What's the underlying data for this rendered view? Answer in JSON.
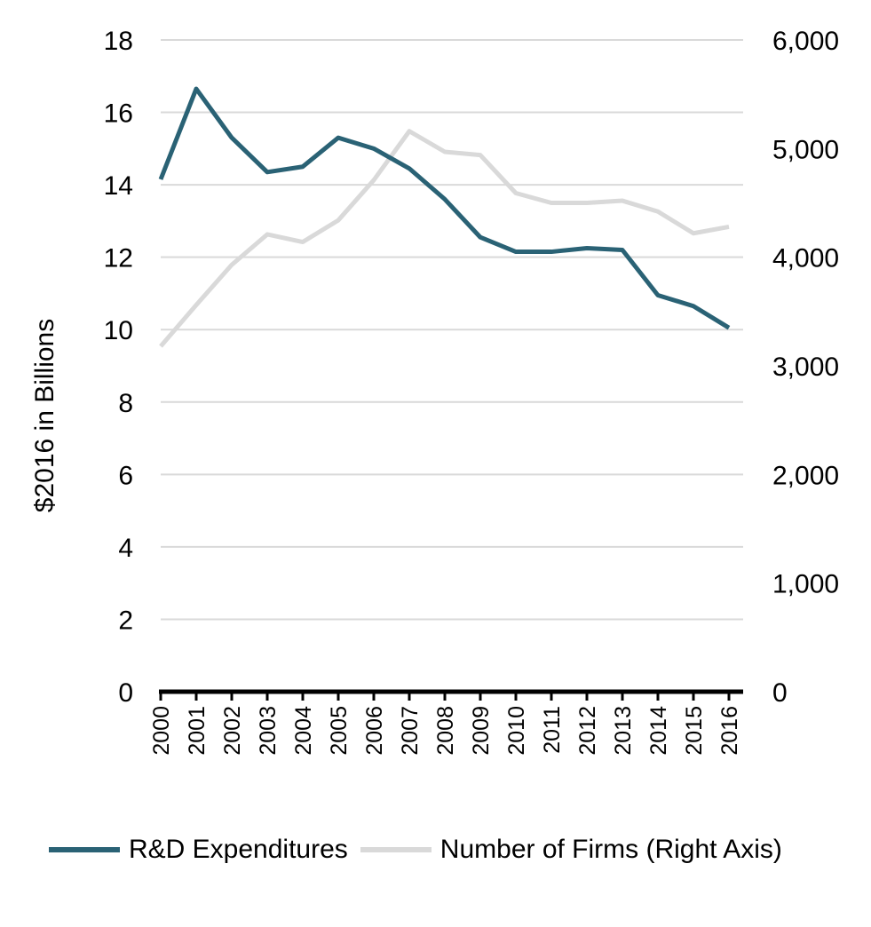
{
  "chart_data": {
    "type": "line",
    "title": "",
    "x": [
      "2000",
      "2001",
      "2002",
      "2003",
      "2004",
      "2005",
      "2006",
      "2007",
      "2008",
      "2009",
      "2010",
      "2011",
      "2012",
      "2013",
      "2014",
      "2015",
      "2016"
    ],
    "xlabel": "",
    "ylabel": "$2016 in Billions",
    "ylim": [
      0,
      18
    ],
    "yticks": [
      "0",
      "2",
      "4",
      "6",
      "8",
      "10",
      "12",
      "14",
      "16",
      "18"
    ],
    "y2lim": [
      0,
      6000
    ],
    "y2ticks": [
      "0",
      "1,000",
      "2,000",
      "3,000",
      "4,000",
      "5,000",
      "6,000"
    ],
    "grid": true,
    "legend_position": "bottom",
    "series": [
      {
        "name": "R&D Expenditures",
        "axis": "left",
        "color": "#2a6275",
        "values": [
          14.15,
          16.65,
          15.3,
          14.35,
          14.5,
          15.3,
          15.0,
          14.45,
          13.6,
          12.55,
          12.15,
          12.15,
          12.25,
          12.2,
          10.95,
          10.65,
          10.05
        ]
      },
      {
        "name": "Number of Firms (Right Axis)",
        "axis": "right",
        "color": "#d9d9d9",
        "values": [
          3180,
          3560,
          3930,
          4210,
          4140,
          4340,
          4710,
          5160,
          4970,
          4940,
          4590,
          4500,
          4500,
          4520,
          4420,
          4220,
          4280
        ]
      }
    ]
  }
}
